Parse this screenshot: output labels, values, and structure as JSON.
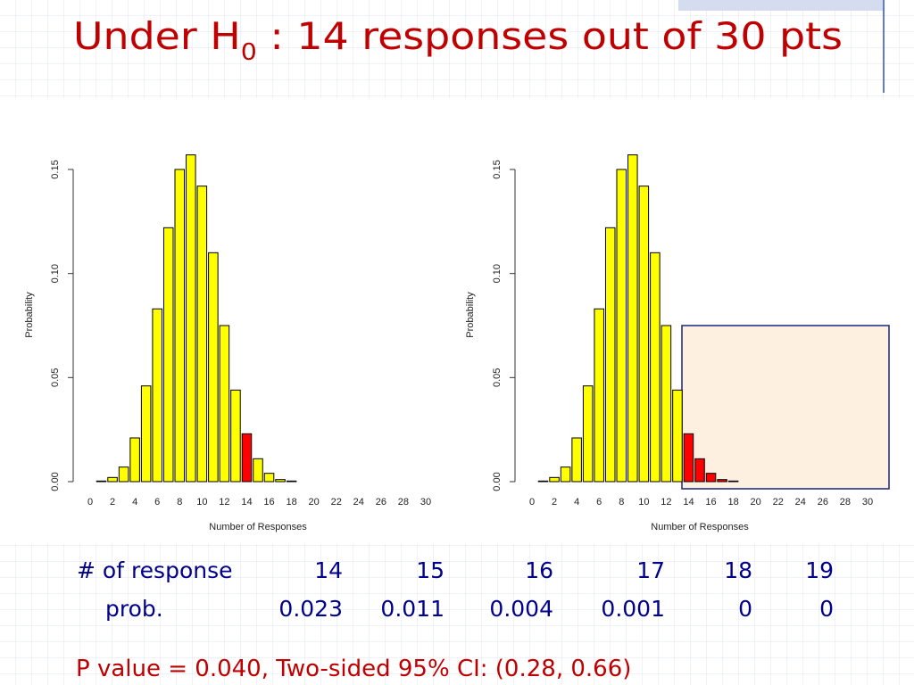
{
  "title": {
    "before": "Under H",
    "subscript": "0",
    "after": " : 14 responses out of 30 pts"
  },
  "chart_data": [
    {
      "type": "bar",
      "x_label": "Number of Responses",
      "y_label": "Probability",
      "x": [
        0,
        1,
        2,
        3,
        4,
        5,
        6,
        7,
        8,
        9,
        10,
        11,
        12,
        13,
        14,
        15,
        16,
        17,
        18,
        19,
        20,
        21,
        22,
        23,
        24,
        25,
        26,
        27,
        28,
        29,
        30
      ],
      "values": [
        0.0,
        0.0003,
        0.002,
        0.007,
        0.021,
        0.046,
        0.083,
        0.122,
        0.15,
        0.157,
        0.142,
        0.11,
        0.075,
        0.044,
        0.023,
        0.011,
        0.004,
        0.001,
        0.0003,
        0,
        0,
        0,
        0,
        0,
        0,
        0,
        0,
        0,
        0,
        0,
        0
      ],
      "colors": [
        "#ffff00",
        "#ffff00",
        "#ffff00",
        "#ffff00",
        "#ffff00",
        "#ffff00",
        "#ffff00",
        "#ffff00",
        "#ffff00",
        "#ffff00",
        "#ffff00",
        "#ffff00",
        "#ffff00",
        "#ffff00",
        "#ff0000",
        "#ffff00",
        "#ffff00",
        "#ffff00",
        "#ffff00",
        "#ffff00",
        "#ffff00",
        "#ffff00",
        "#ffff00",
        "#ffff00",
        "#ffff00",
        "#ffff00",
        "#ffff00",
        "#ffff00",
        "#ffff00",
        "#ffff00",
        "#ffff00"
      ],
      "xlim": [
        0,
        30
      ],
      "xticks": [
        0,
        2,
        4,
        6,
        8,
        10,
        12,
        14,
        16,
        18,
        20,
        22,
        24,
        26,
        28,
        30
      ],
      "ylim": [
        0,
        0.15
      ],
      "yticks": [
        {
          "value": 0,
          "label": "0.00"
        },
        0.05,
        {
          "value": 0.1,
          "label": "0.10"
        },
        0.15
      ]
    },
    {
      "type": "bar",
      "x_label": "Number of Responses",
      "y_label": "Probability",
      "x": [
        0,
        1,
        2,
        3,
        4,
        5,
        6,
        7,
        8,
        9,
        10,
        11,
        12,
        13,
        14,
        15,
        16,
        17,
        18,
        19,
        20,
        21,
        22,
        23,
        24,
        25,
        26,
        27,
        28,
        29,
        30
      ],
      "values": [
        0.0,
        0.0003,
        0.002,
        0.007,
        0.021,
        0.046,
        0.083,
        0.122,
        0.15,
        0.157,
        0.142,
        0.11,
        0.075,
        0.044,
        0.023,
        0.011,
        0.004,
        0.001,
        0.0003,
        0,
        0,
        0,
        0,
        0,
        0,
        0,
        0,
        0,
        0,
        0,
        0
      ],
      "colors": [
        "#ffff00",
        "#ffff00",
        "#ffff00",
        "#ffff00",
        "#ffff00",
        "#ffff00",
        "#ffff00",
        "#ffff00",
        "#ffff00",
        "#ffff00",
        "#ffff00",
        "#ffff00",
        "#ffff00",
        "#ffff00",
        "#ff0000",
        "#ff0000",
        "#ff0000",
        "#ff0000",
        "#ff0000",
        "#ff0000",
        "#ff0000",
        "#ff0000",
        "#ff0000",
        "#ff0000",
        "#ff0000",
        "#ff0000",
        "#ff0000",
        "#ff0000",
        "#ff0000",
        "#ff0000",
        "#ff0000"
      ],
      "xlim": [
        0,
        30
      ],
      "xticks": [
        0,
        2,
        4,
        6,
        8,
        10,
        12,
        14,
        16,
        18,
        20,
        22,
        24,
        26,
        28,
        30
      ],
      "ylim": [
        0,
        0.15
      ],
      "yticks": [
        {
          "value": 0,
          "label": "0.00"
        },
        0.05,
        {
          "value": 0.1,
          "label": "0.10"
        },
        0.15
      ]
    }
  ],
  "table": {
    "rows": [
      [
        "# of response",
        "14",
        "15",
        "16",
        "17",
        "18",
        "19"
      ],
      [
        "prob.",
        "0.023",
        "0.011",
        "0.004",
        "0.001",
        "0",
        "0"
      ]
    ]
  },
  "note": "P value = 0.040, Two-sided 95% CI: (0.28, 0.66)"
}
